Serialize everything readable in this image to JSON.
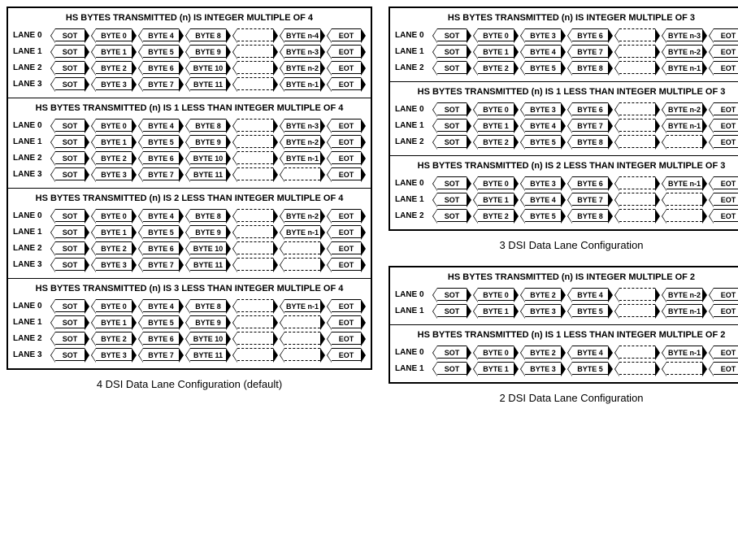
{
  "left": {
    "caption": "4 DSI Data Lane Configuration (default)",
    "sections": [
      {
        "title": "HS BYTES TRANSMITTED (n) IS INTEGER MULTIPLE OF 4",
        "lanes": [
          {
            "label": "LANE 0",
            "cells": [
              {
                "t": "SOT"
              },
              {
                "t": "BYTE 0"
              },
              {
                "t": "BYTE 4"
              },
              {
                "t": "BYTE 8"
              },
              {
                "gap": true
              },
              {
                "t": "BYTE n-4"
              },
              {
                "t": "EOT"
              }
            ]
          },
          {
            "label": "LANE 1",
            "cells": [
              {
                "t": "SOT"
              },
              {
                "t": "BYTE 1"
              },
              {
                "t": "BYTE 5"
              },
              {
                "t": "BYTE 9"
              },
              {
                "gap": true
              },
              {
                "t": "BYTE n-3"
              },
              {
                "t": "EOT"
              }
            ]
          },
          {
            "label": "LANE 2",
            "cells": [
              {
                "t": "SOT"
              },
              {
                "t": "BYTE 2"
              },
              {
                "t": "BYTE 6"
              },
              {
                "t": "BYTE 10"
              },
              {
                "gap": true
              },
              {
                "t": "BYTE n-2"
              },
              {
                "t": "EOT"
              }
            ]
          },
          {
            "label": "LANE 3",
            "cells": [
              {
                "t": "SOT"
              },
              {
                "t": "BYTE 3"
              },
              {
                "t": "BYTE 7"
              },
              {
                "t": "BYTE 11"
              },
              {
                "gap": true
              },
              {
                "t": "BYTE n-1"
              },
              {
                "t": "EOT"
              }
            ]
          }
        ]
      },
      {
        "title": "HS BYTES TRANSMITTED (n) IS 1 LESS THAN INTEGER MULTIPLE OF 4",
        "lanes": [
          {
            "label": "LANE 0",
            "cells": [
              {
                "t": "SOT"
              },
              {
                "t": "BYTE 0"
              },
              {
                "t": "BYTE 4"
              },
              {
                "t": "BYTE 8"
              },
              {
                "gap": true
              },
              {
                "t": "BYTE n-3"
              },
              {
                "t": "EOT"
              }
            ]
          },
          {
            "label": "LANE 1",
            "cells": [
              {
                "t": "SOT"
              },
              {
                "t": "BYTE 1"
              },
              {
                "t": "BYTE 5"
              },
              {
                "t": "BYTE 9"
              },
              {
                "gap": true
              },
              {
                "t": "BYTE n-2"
              },
              {
                "t": "EOT"
              }
            ]
          },
          {
            "label": "LANE 2",
            "cells": [
              {
                "t": "SOT"
              },
              {
                "t": "BYTE 2"
              },
              {
                "t": "BYTE 6"
              },
              {
                "t": "BYTE 10"
              },
              {
                "gap": true
              },
              {
                "t": "BYTE n-1"
              },
              {
                "t": "EOT"
              }
            ]
          },
          {
            "label": "LANE 3",
            "cells": [
              {
                "t": "SOT"
              },
              {
                "t": "BYTE 3"
              },
              {
                "t": "BYTE 7"
              },
              {
                "t": "BYTE 11"
              },
              {
                "gap": true
              },
              {
                "gap": true
              },
              {
                "t": "EOT"
              }
            ]
          }
        ]
      },
      {
        "title": "HS BYTES TRANSMITTED (n) IS 2 LESS THAN INTEGER MULTIPLE OF 4",
        "lanes": [
          {
            "label": "LANE 0",
            "cells": [
              {
                "t": "SOT"
              },
              {
                "t": "BYTE 0"
              },
              {
                "t": "BYTE 4"
              },
              {
                "t": "BYTE 8"
              },
              {
                "gap": true
              },
              {
                "t": "BYTE n-2"
              },
              {
                "t": "EOT"
              }
            ]
          },
          {
            "label": "LANE 1",
            "cells": [
              {
                "t": "SOT"
              },
              {
                "t": "BYTE 1"
              },
              {
                "t": "BYTE 5"
              },
              {
                "t": "BYTE 9"
              },
              {
                "gap": true
              },
              {
                "t": "BYTE n-1"
              },
              {
                "t": "EOT"
              }
            ]
          },
          {
            "label": "LANE 2",
            "cells": [
              {
                "t": "SOT"
              },
              {
                "t": "BYTE 2"
              },
              {
                "t": "BYTE 6"
              },
              {
                "t": "BYTE 10"
              },
              {
                "gap": true
              },
              {
                "gap": true
              },
              {
                "t": "EOT"
              }
            ]
          },
          {
            "label": "LANE 3",
            "cells": [
              {
                "t": "SOT"
              },
              {
                "t": "BYTE 3"
              },
              {
                "t": "BYTE 7"
              },
              {
                "t": "BYTE 11"
              },
              {
                "gap": true
              },
              {
                "gap": true
              },
              {
                "t": "EOT"
              }
            ]
          }
        ]
      },
      {
        "title": "HS BYTES TRANSMITTED (n) IS 3 LESS THAN INTEGER MULTIPLE OF 4",
        "lanes": [
          {
            "label": "LANE 0",
            "cells": [
              {
                "t": "SOT"
              },
              {
                "t": "BYTE 0"
              },
              {
                "t": "BYTE 4"
              },
              {
                "t": "BYTE 8"
              },
              {
                "gap": true
              },
              {
                "t": "BYTE n-1"
              },
              {
                "t": "EOT"
              }
            ]
          },
          {
            "label": "LANE 1",
            "cells": [
              {
                "t": "SOT"
              },
              {
                "t": "BYTE 1"
              },
              {
                "t": "BYTE 5"
              },
              {
                "t": "BYTE 9"
              },
              {
                "gap": true
              },
              {
                "gap": true
              },
              {
                "t": "EOT"
              }
            ]
          },
          {
            "label": "LANE 2",
            "cells": [
              {
                "t": "SOT"
              },
              {
                "t": "BYTE 2"
              },
              {
                "t": "BYTE 6"
              },
              {
                "t": "BYTE 10"
              },
              {
                "gap": true
              },
              {
                "gap": true
              },
              {
                "t": "EOT"
              }
            ]
          },
          {
            "label": "LANE 3",
            "cells": [
              {
                "t": "SOT"
              },
              {
                "t": "BYTE 3"
              },
              {
                "t": "BYTE 7"
              },
              {
                "t": "BYTE 11"
              },
              {
                "gap": true
              },
              {
                "gap": true
              },
              {
                "t": "EOT"
              }
            ]
          }
        ]
      }
    ]
  },
  "right_top": {
    "caption": "3 DSI Data Lane Configuration",
    "sections": [
      {
        "title": "HS BYTES TRANSMITTED (n) IS INTEGER MULTIPLE OF 3",
        "lanes": [
          {
            "label": "LANE 0",
            "cells": [
              {
                "t": "SOT"
              },
              {
                "t": "BYTE 0"
              },
              {
                "t": "BYTE 3"
              },
              {
                "t": "BYTE 6"
              },
              {
                "gap": true
              },
              {
                "t": "BYTE n-3"
              },
              {
                "t": "EOT"
              }
            ]
          },
          {
            "label": "LANE 1",
            "cells": [
              {
                "t": "SOT"
              },
              {
                "t": "BYTE 1"
              },
              {
                "t": "BYTE 4"
              },
              {
                "t": "BYTE 7"
              },
              {
                "gap": true
              },
              {
                "t": "BYTE n-2"
              },
              {
                "t": "EOT"
              }
            ]
          },
          {
            "label": "LANE 2",
            "cells": [
              {
                "t": "SOT"
              },
              {
                "t": "BYTE 2"
              },
              {
                "t": "BYTE 5"
              },
              {
                "t": "BYTE 8"
              },
              {
                "gap": true
              },
              {
                "t": "BYTE n-1"
              },
              {
                "t": "EOT"
              }
            ]
          }
        ]
      },
      {
        "title": "HS BYTES TRANSMITTED (n) IS 1 LESS THAN INTEGER MULTIPLE OF 3",
        "lanes": [
          {
            "label": "LANE 0",
            "cells": [
              {
                "t": "SOT"
              },
              {
                "t": "BYTE 0"
              },
              {
                "t": "BYTE 3"
              },
              {
                "t": "BYTE 6"
              },
              {
                "gap": true
              },
              {
                "t": "BYTE n-2"
              },
              {
                "t": "EOT"
              }
            ]
          },
          {
            "label": "LANE 1",
            "cells": [
              {
                "t": "SOT"
              },
              {
                "t": "BYTE 1"
              },
              {
                "t": "BYTE 4"
              },
              {
                "t": "BYTE 7"
              },
              {
                "gap": true
              },
              {
                "t": "BYTE n-1"
              },
              {
                "t": "EOT"
              }
            ]
          },
          {
            "label": "LANE 2",
            "cells": [
              {
                "t": "SOT"
              },
              {
                "t": "BYTE 2"
              },
              {
                "t": "BYTE 5"
              },
              {
                "t": "BYTE 8"
              },
              {
                "gap": true
              },
              {
                "gap": true
              },
              {
                "t": "EOT"
              }
            ]
          }
        ]
      },
      {
        "title": "HS BYTES TRANSMITTED (n) IS 2 LESS THAN INTEGER MULTIPLE OF 3",
        "lanes": [
          {
            "label": "LANE 0",
            "cells": [
              {
                "t": "SOT"
              },
              {
                "t": "BYTE 0"
              },
              {
                "t": "BYTE 3"
              },
              {
                "t": "BYTE 6"
              },
              {
                "gap": true
              },
              {
                "t": "BYTE n-1"
              },
              {
                "t": "EOT"
              }
            ]
          },
          {
            "label": "LANE 1",
            "cells": [
              {
                "t": "SOT"
              },
              {
                "t": "BYTE 1"
              },
              {
                "t": "BYTE 4"
              },
              {
                "t": "BYTE 7"
              },
              {
                "gap": true
              },
              {
                "gap": true
              },
              {
                "t": "EOT"
              }
            ]
          },
          {
            "label": "LANE 2",
            "cells": [
              {
                "t": "SOT"
              },
              {
                "t": "BYTE 2"
              },
              {
                "t": "BYTE 5"
              },
              {
                "t": "BYTE 8"
              },
              {
                "gap": true
              },
              {
                "gap": true
              },
              {
                "t": "EOT"
              }
            ]
          }
        ]
      }
    ]
  },
  "right_bottom": {
    "caption": "2 DSI Data Lane Configuration",
    "sections": [
      {
        "title": "HS BYTES TRANSMITTED (n) IS INTEGER MULTIPLE OF 2",
        "lanes": [
          {
            "label": "LANE 0",
            "cells": [
              {
                "t": "SOT"
              },
              {
                "t": "BYTE 0"
              },
              {
                "t": "BYTE 2"
              },
              {
                "t": "BYTE 4"
              },
              {
                "gap": true
              },
              {
                "t": "BYTE n-2"
              },
              {
                "t": "EOT"
              }
            ]
          },
          {
            "label": "LANE 1",
            "cells": [
              {
                "t": "SOT"
              },
              {
                "t": "BYTE 1"
              },
              {
                "t": "BYTE 3"
              },
              {
                "t": "BYTE 5"
              },
              {
                "gap": true
              },
              {
                "t": "BYTE n-1"
              },
              {
                "t": "EOT"
              }
            ]
          }
        ]
      },
      {
        "title": "HS BYTES TRANSMITTED (n) IS 1 LESS THAN INTEGER MULTIPLE OF 2",
        "lanes": [
          {
            "label": "LANE 0",
            "cells": [
              {
                "t": "SOT"
              },
              {
                "t": "BYTE 0"
              },
              {
                "t": "BYTE 2"
              },
              {
                "t": "BYTE 4"
              },
              {
                "gap": true
              },
              {
                "t": "BYTE n-1"
              },
              {
                "t": "EOT"
              }
            ]
          },
          {
            "label": "LANE 1",
            "cells": [
              {
                "t": "SOT"
              },
              {
                "t": "BYTE 1"
              },
              {
                "t": "BYTE 3"
              },
              {
                "t": "BYTE 5"
              },
              {
                "gap": true
              },
              {
                "gap": true
              },
              {
                "t": "EOT"
              }
            ]
          }
        ]
      }
    ]
  }
}
